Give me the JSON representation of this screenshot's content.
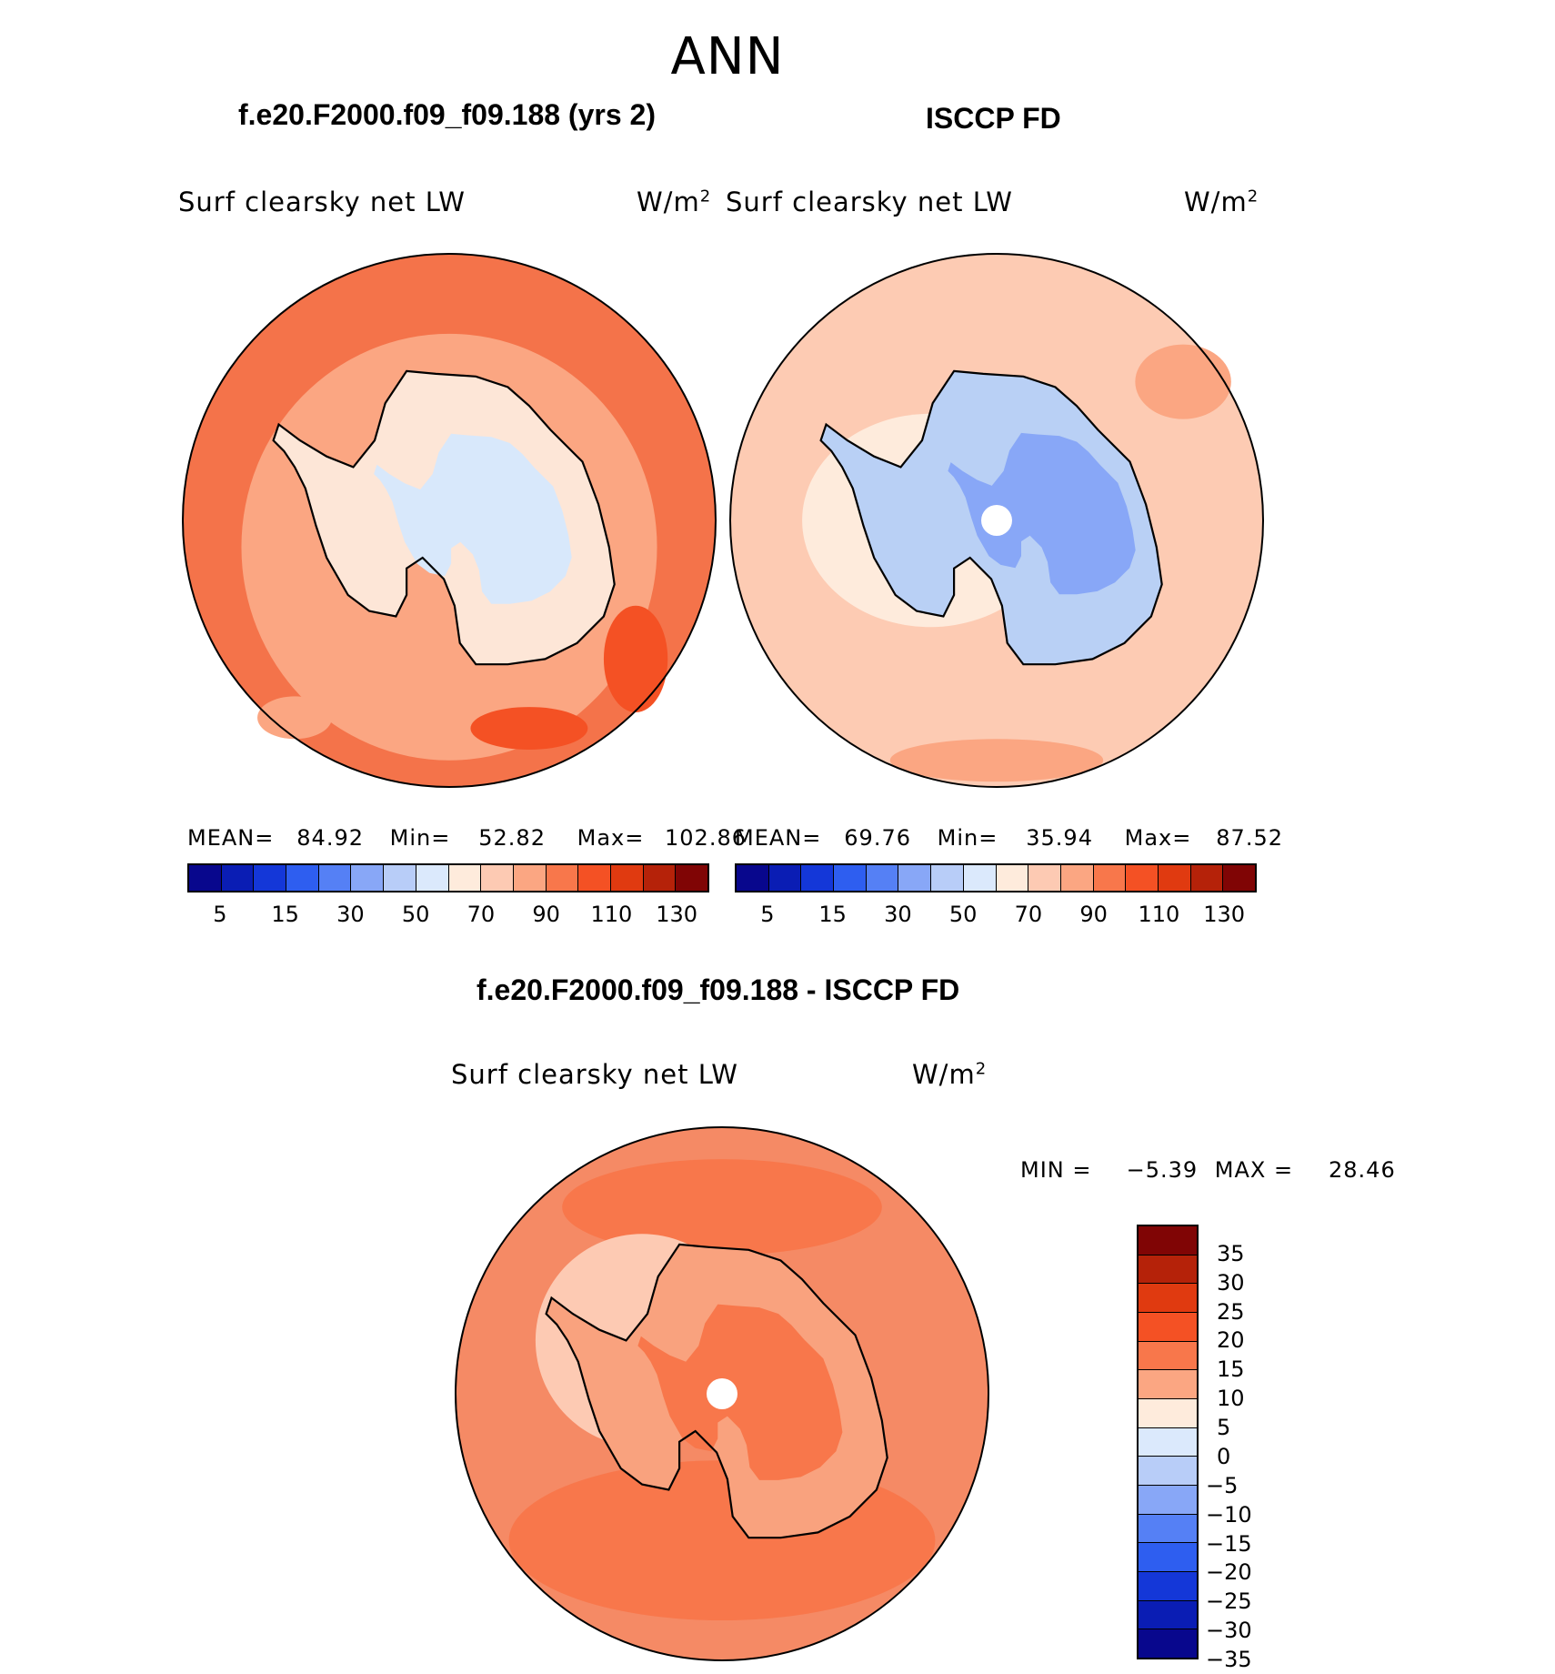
{
  "main_title": "ANN",
  "panels": [
    {
      "title": "f.e20.F2000.f09_f09.188 (yrs 2)",
      "variable": "Surf clearsky net LW",
      "units": "W/m",
      "units_sup": "2",
      "stats": {
        "mean_label": "MEAN=",
        "mean": "84.92",
        "min_label": "Min=",
        "min": "52.82",
        "max_label": "Max=",
        "max": "102.86"
      },
      "ocean_color": "#f4734a",
      "land_color": "#fde6d7"
    },
    {
      "title": "ISCCP FD",
      "variable": "Surf clearsky net LW",
      "units": "W/m",
      "units_sup": "2",
      "stats": {
        "mean_label": "MEAN=",
        "mean": "69.76",
        "min_label": "Min=",
        "min": "35.94",
        "max_label": "Max=",
        "max": "87.52"
      },
      "ocean_color": "#fdcbb3",
      "land_color": "#b9d0f5"
    },
    {
      "title": "f.e20.F2000.f09_f09.188 - ISCCP FD",
      "variable": "Surf clearsky net LW",
      "units": "W/m",
      "units_sup": "2",
      "stats": {
        "min_label": "MIN =",
        "min": "−5.39",
        "max_label": "MAX =",
        "max": "28.46"
      },
      "ocean_color": "#f58a65",
      "land_color": "#f9a27e"
    }
  ],
  "colorbar_abs": {
    "colors": [
      "#08078d",
      "#0a1db4",
      "#1437d8",
      "#2e5ef0",
      "#5580f5",
      "#88a7f7",
      "#b8cdf8",
      "#dbe9fc",
      "#feebdc",
      "#fdcab3",
      "#fba682",
      "#f8774b",
      "#f45124",
      "#e03a10",
      "#b52209",
      "#800505"
    ],
    "ticks": [
      "5",
      "15",
      "30",
      "50",
      "70",
      "90",
      "110",
      "130"
    ]
  },
  "colorbar_diff": {
    "colors": [
      "#800505",
      "#b52209",
      "#e03a10",
      "#f45124",
      "#f8774b",
      "#fba682",
      "#feebdc",
      "#dbe9fc",
      "#b8cdf8",
      "#88a7f7",
      "#5580f5",
      "#2e5ef0",
      "#1437d8",
      "#0a1db4",
      "#08078d"
    ],
    "ticks": [
      "35",
      "30",
      "25",
      "20",
      "15",
      "10",
      "5",
      "0",
      "−5",
      "−10",
      "−15",
      "−20",
      "−25",
      "−30",
      "−35"
    ]
  }
}
